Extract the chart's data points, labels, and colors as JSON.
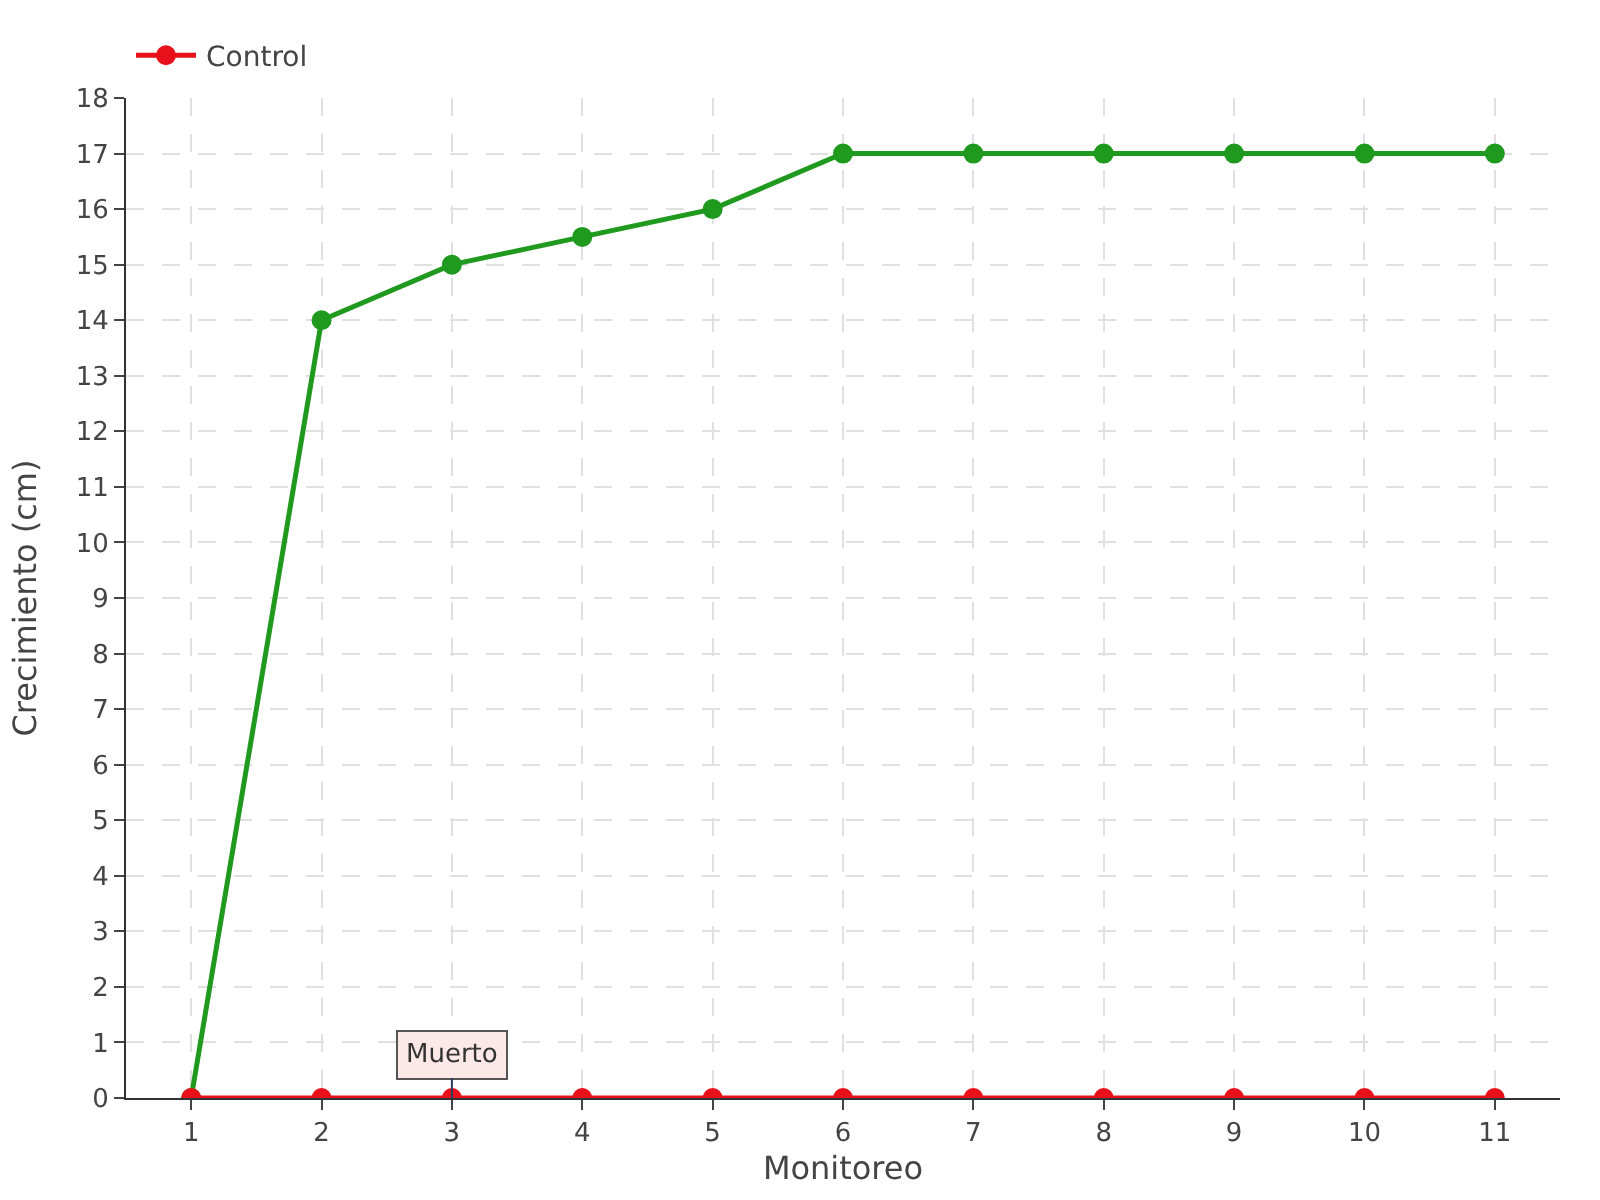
{
  "chart_data": {
    "type": "line",
    "xlabel": "Monitoreo",
    "ylabel": "Crecimiento (cm)",
    "categories": [
      "1",
      "2",
      "3",
      "4",
      "5",
      "6",
      "7",
      "8",
      "9",
      "10",
      "11"
    ],
    "series": [
      {
        "color": "#1f9a1f",
        "values": [
          0,
          14,
          15,
          15.5,
          16,
          17,
          17,
          17,
          17,
          17,
          17
        ]
      },
      {
        "name": "Control",
        "color": "#e8101a",
        "values": [
          0,
          0,
          0,
          0,
          0,
          0,
          0,
          0,
          0,
          0,
          0
        ]
      }
    ],
    "annotations": [
      {
        "text": "Muerto",
        "x": "3",
        "y": 0
      }
    ],
    "ylim": [
      0,
      18
    ],
    "yticks": [
      0,
      1,
      2,
      3,
      4,
      5,
      6,
      7,
      8,
      9,
      10,
      11,
      12,
      13,
      14,
      15,
      16,
      17,
      18
    ],
    "grid": true,
    "legend": "top left",
    "marker": "circle",
    "line_style": "solid"
  }
}
